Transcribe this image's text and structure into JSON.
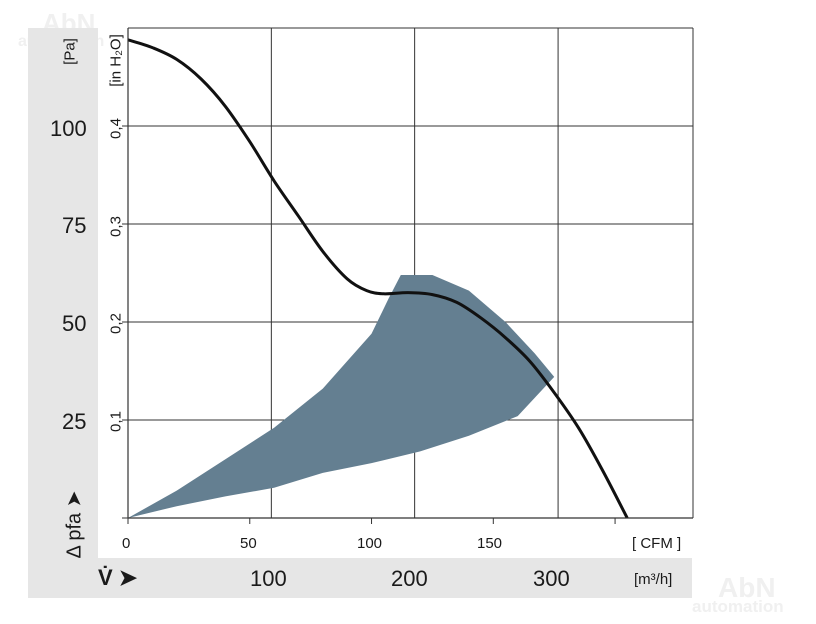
{
  "watermark": {
    "brand": "AbN",
    "tagline": "automation"
  },
  "chart_data": {
    "type": "line",
    "title": "",
    "x_axis": {
      "cfm": {
        "range": [
          0,
          232
        ],
        "ticks": [
          "0",
          "50",
          "100",
          "150"
        ],
        "unit": "[ CFM ]"
      },
      "m3h": {
        "ticks": [
          "100",
          "200",
          "300"
        ],
        "unit": "[m³/h]",
        "symbol": "V̇ ➤"
      }
    },
    "y_axis": {
      "pa": {
        "range": [
          0,
          125
        ],
        "ticks": [
          "25",
          "50",
          "75",
          "100"
        ],
        "unit": "[Pa]",
        "symbol": "Δ pfa ➤"
      },
      "inh2o": {
        "ticks": [
          "0,1",
          "0,2",
          "0,3",
          "0,4"
        ],
        "unit": "[in H₂O]"
      }
    },
    "grid": true,
    "series": [
      {
        "type": "curve",
        "color": "#111111",
        "x_cfm": [
          0,
          10,
          20,
          30,
          40,
          50,
          60,
          70,
          80,
          90,
          98,
          105,
          115,
          125,
          135,
          145,
          155,
          165,
          175,
          185,
          195,
          205
        ],
        "y_pa": [
          122,
          120,
          117,
          112,
          105,
          96,
          86,
          77,
          68,
          61,
          58,
          57.2,
          57.5,
          57,
          55,
          51,
          46,
          40,
          32,
          23,
          12,
          0
        ]
      }
    ],
    "operating_region": {
      "color": "#647f91",
      "upper_x_cfm": [
        0,
        20,
        40,
        60,
        80,
        100,
        107,
        112,
        125,
        140,
        155,
        167,
        175
      ],
      "upper_y_pa": [
        0,
        7,
        15,
        23,
        33,
        47,
        56,
        62,
        62,
        58,
        50,
        42,
        36
      ],
      "lower_x_cfm": [
        175,
        160,
        140,
        120,
        100,
        80,
        60,
        40,
        20,
        0
      ],
      "lower_y_pa": [
        36,
        26,
        21,
        17,
        14,
        11.5,
        7.7,
        5.5,
        3,
        0
      ]
    }
  }
}
